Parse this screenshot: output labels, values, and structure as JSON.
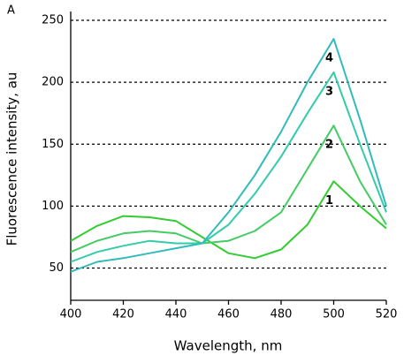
{
  "chart_data": {
    "type": "line",
    "annotation": "A",
    "x_label": "Wavelength, nm",
    "y_label": "Fluorescence intensity, au",
    "x": [
      400,
      410,
      420,
      430,
      440,
      450,
      460,
      470,
      480,
      490,
      500,
      510,
      520
    ],
    "series": [
      {
        "name": "1",
        "color": "#33cc33",
        "values": [
          72,
          84,
          92,
          91,
          88,
          75,
          62,
          58,
          65,
          85,
          120,
          100,
          82
        ]
      },
      {
        "name": "2",
        "color": "#44cc66",
        "values": [
          63,
          72,
          78,
          80,
          78,
          70,
          72,
          80,
          95,
          130,
          165,
          120,
          85
        ]
      },
      {
        "name": "3",
        "color": "#33ccaa",
        "values": [
          55,
          63,
          68,
          72,
          70,
          70,
          85,
          110,
          140,
          175,
          208,
          150,
          95
        ]
      },
      {
        "name": "4",
        "color": "#33bbbb",
        "values": [
          47,
          55,
          58,
          62,
          66,
          70,
          95,
          125,
          160,
          200,
          235,
          170,
          100
        ]
      }
    ],
    "xlim": [
      400,
      520
    ],
    "xticks": [
      400,
      420,
      440,
      460,
      480,
      500,
      520
    ],
    "ylim": [
      24,
      250
    ],
    "yticks": [
      50,
      100,
      150,
      200,
      250
    ],
    "grid": true
  }
}
